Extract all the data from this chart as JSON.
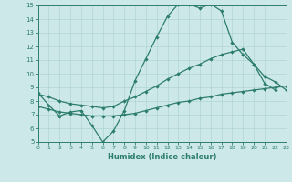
{
  "xlabel": "Humidex (Indice chaleur)",
  "xlim": [
    0,
    23
  ],
  "ylim": [
    5,
    15
  ],
  "yticks": [
    5,
    6,
    7,
    8,
    9,
    10,
    11,
    12,
    13,
    14,
    15
  ],
  "xticks": [
    0,
    1,
    2,
    3,
    4,
    5,
    6,
    7,
    8,
    9,
    10,
    11,
    12,
    13,
    14,
    15,
    16,
    17,
    18,
    19,
    20,
    21,
    22,
    23
  ],
  "bg_color": "#cde8e8",
  "line_color": "#2d7d6e",
  "grid_color": "#afd4d4",
  "line1_x": [
    0,
    1,
    2,
    3,
    4,
    5,
    6,
    7,
    8,
    9,
    10,
    11,
    12,
    13,
    14,
    15,
    16,
    17,
    18,
    19,
    20,
    21,
    22
  ],
  "line1_y": [
    8.6,
    7.7,
    6.9,
    7.2,
    7.3,
    6.2,
    5.0,
    5.8,
    7.3,
    9.5,
    11.1,
    12.7,
    14.2,
    15.1,
    15.1,
    14.8,
    15.1,
    14.6,
    12.3,
    11.4,
    10.7,
    9.3,
    8.8
  ],
  "line2_x": [
    0,
    1,
    2,
    3,
    4,
    5,
    6,
    7,
    8,
    9,
    10,
    11,
    12,
    13,
    14,
    15,
    16,
    17,
    18,
    19,
    20,
    21,
    22,
    23
  ],
  "line2_y": [
    8.5,
    8.3,
    8.0,
    7.8,
    7.7,
    7.6,
    7.5,
    7.6,
    8.0,
    8.3,
    8.7,
    9.1,
    9.6,
    10.0,
    10.4,
    10.7,
    11.1,
    11.4,
    11.6,
    11.8,
    10.7,
    9.8,
    9.4,
    8.8
  ],
  "line3_x": [
    0,
    1,
    2,
    3,
    4,
    5,
    6,
    7,
    8,
    9,
    10,
    11,
    12,
    13,
    14,
    15,
    16,
    17,
    18,
    19,
    20,
    21,
    22,
    23
  ],
  "line3_y": [
    7.6,
    7.4,
    7.2,
    7.1,
    7.0,
    6.9,
    6.9,
    6.9,
    7.0,
    7.1,
    7.3,
    7.5,
    7.7,
    7.9,
    8.0,
    8.2,
    8.3,
    8.5,
    8.6,
    8.7,
    8.8,
    8.9,
    9.0,
    9.1
  ]
}
